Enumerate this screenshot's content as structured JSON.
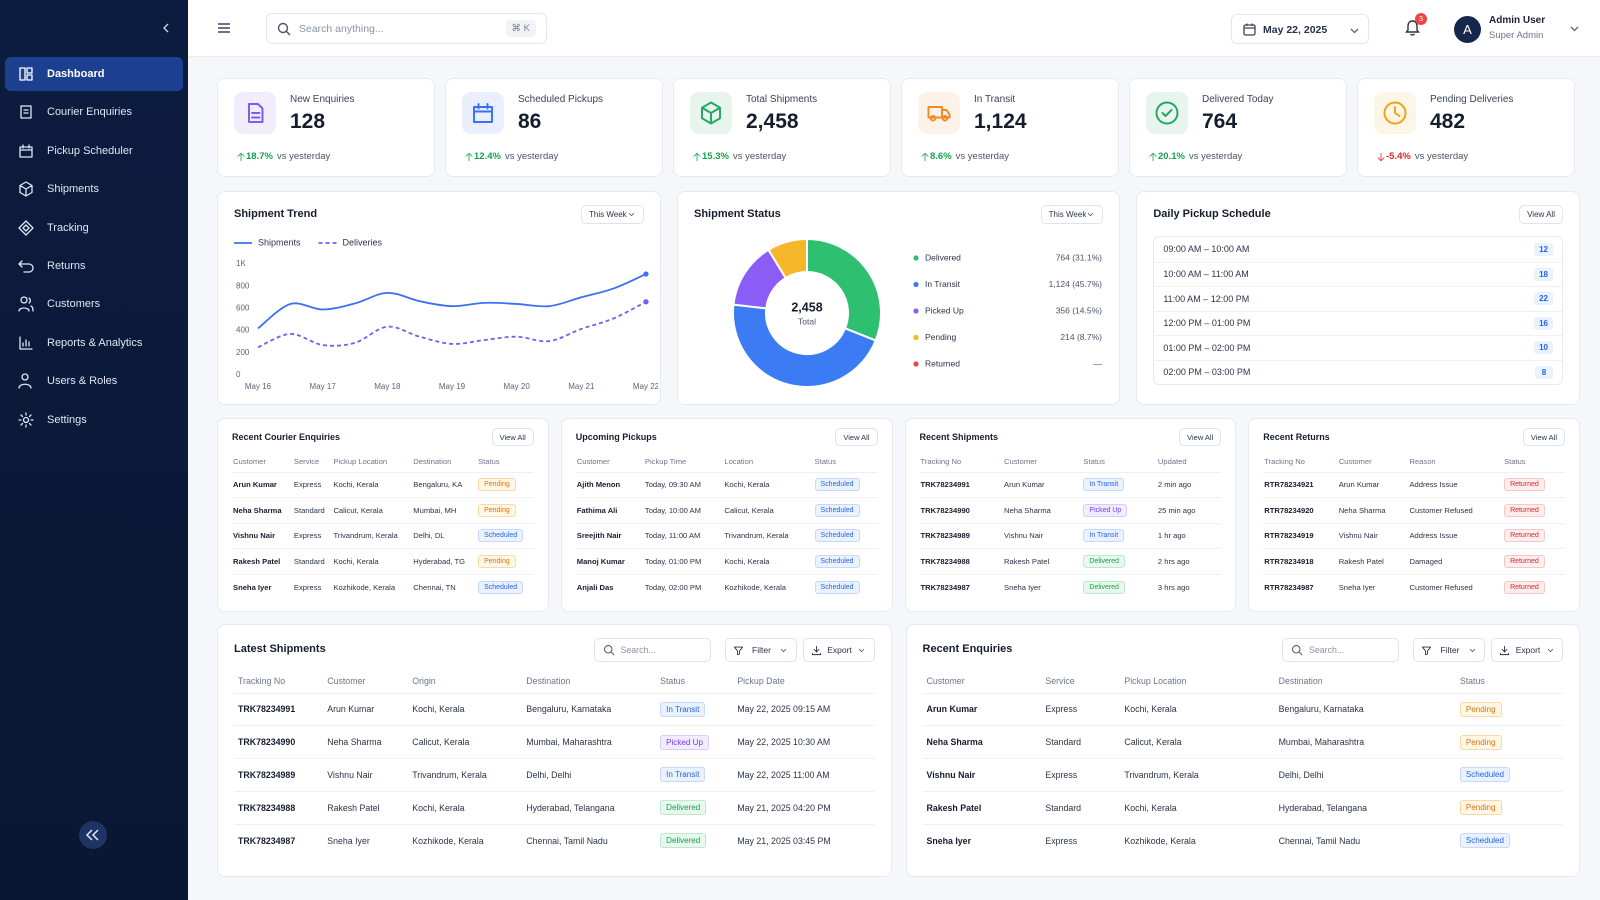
{
  "sidebar": {
    "nav": [
      {
        "label": "Dashboard",
        "active": true
      },
      {
        "label": "Courier Enquiries",
        "active": false
      },
      {
        "label": "Pickup Scheduler",
        "active": false
      },
      {
        "label": "Shipments",
        "active": false
      },
      {
        "label": "Tracking",
        "active": false
      },
      {
        "label": "Returns",
        "active": false
      },
      {
        "label": "Customers",
        "active": false
      },
      {
        "label": "Reports & Analytics",
        "active": false
      },
      {
        "label": "Users & Roles",
        "active": false
      },
      {
        "label": "Settings",
        "active": false
      }
    ]
  },
  "header": {
    "search_placeholder": "Search anything...",
    "shortcut": "⌘ K",
    "date": "May 22, 2025",
    "notifications": 3,
    "avatar": "A",
    "user_name": "Admin User",
    "user_role": "Super Admin"
  },
  "kpis": [
    {
      "label": "New Enquiries",
      "value": "128",
      "change": "18.7%",
      "direction": "up",
      "compare": "vs yesterday",
      "color": "#7c5cf0"
    },
    {
      "label": "Scheduled Pickups",
      "value": "86",
      "change": "12.4%",
      "direction": "up",
      "compare": "vs yesterday",
      "color": "#3b6ff5"
    },
    {
      "label": "Total Shipments",
      "value": "2,458",
      "change": "15.3%",
      "direction": "up",
      "compare": "vs yesterday",
      "color": "#22a861"
    },
    {
      "label": "In Transit",
      "value": "1,124",
      "change": "8.6%",
      "direction": "up",
      "compare": "vs yesterday",
      "color": "#f08a24"
    },
    {
      "label": "Delivered Today",
      "value": "764",
      "change": "20.1%",
      "direction": "up",
      "compare": "vs yesterday",
      "color": "#22a861"
    },
    {
      "label": "Pending Deliveries",
      "value": "482",
      "change": "-5.4%",
      "direction": "down",
      "compare": "vs yesterday",
      "color": "#f0a414"
    }
  ],
  "chart_data": [
    {
      "type": "line",
      "title": "Shipment Trend",
      "period": "This Week",
      "categories": [
        "May 16",
        null,
        "May 17",
        null,
        "May 18",
        null,
        "May 19",
        null,
        "May 20",
        null,
        "May 21",
        null,
        "May 22"
      ],
      "series": [
        {
          "name": "Shipments",
          "color": "#3b6ff5",
          "dash": false,
          "values": [
            420,
            640,
            590,
            645,
            740,
            665,
            620,
            650,
            640,
            620,
            700,
            780,
            910
          ]
        },
        {
          "name": "Deliveries",
          "color": "#7c5cf0",
          "dash": true,
          "values": [
            250,
            370,
            270,
            290,
            435,
            345,
            280,
            315,
            345,
            305,
            415,
            510,
            660
          ]
        }
      ],
      "ylim": [
        0,
        1000
      ],
      "yticks": [
        0,
        200,
        400,
        600,
        800,
        {
          "value": 1000,
          "label": "1K"
        }
      ],
      "grid": false
    },
    {
      "type": "donut",
      "title": "Shipment Status",
      "period": "This Week",
      "center_label": "2,458",
      "center_caption": "Total",
      "categories": [
        "Delivered",
        "In Transit",
        "Picked Up",
        "Pending",
        "Returned"
      ],
      "values": [
        764,
        1124,
        356,
        214,
        null
      ],
      "value_labels": [
        "764 (31.1%)",
        "1,124 (45.7%)",
        "356 (14.5%)",
        "214 (8.7%)",
        "—"
      ],
      "colors": [
        "#2fbf71",
        "#3b7cf5",
        "#8b5cf6",
        "#f5b62a",
        "#ef4444"
      ]
    }
  ],
  "pickup_schedule": {
    "title": "Daily Pickup Schedule",
    "action": "View All",
    "slots": [
      {
        "time": "09:00 AM – 10:00 AM",
        "count": 12
      },
      {
        "time": "10:00 AM – 11:00 AM",
        "count": 18
      },
      {
        "time": "11:00 AM – 12:00 PM",
        "count": 22
      },
      {
        "time": "12:00 PM – 01:00 PM",
        "count": 16
      },
      {
        "time": "01:00 PM – 02:00 PM",
        "count": 10
      },
      {
        "time": "02:00 PM – 03:00 PM",
        "count": 8
      }
    ]
  },
  "panels": [
    {
      "title": "Recent Courier Enquiries",
      "action": "View All",
      "columns": [
        "Customer",
        "Service",
        "Pickup Location",
        "Destination",
        "Status"
      ],
      "rows": [
        [
          "Arun Kumar",
          "Express",
          "Kochi, Kerala",
          "Bengaluru, KA",
          {
            "text": "Pending",
            "tone": "amber"
          }
        ],
        [
          "Neha Sharma",
          "Standard",
          "Calicut, Kerala",
          "Mumbai, MH",
          {
            "text": "Pending",
            "tone": "amber"
          }
        ],
        [
          "Vishnu Nair",
          "Express",
          "Trivandrum, Kerala",
          "Delhi, DL",
          {
            "text": "Scheduled",
            "tone": "blue"
          }
        ],
        [
          "Rakesh Patel",
          "Standard",
          "Kochi, Kerala",
          "Hyderabad, TG",
          {
            "text": "Pending",
            "tone": "amber"
          }
        ],
        [
          "Sneha Iyer",
          "Express",
          "Kozhikode, Kerala",
          "Chennai, TN",
          {
            "text": "Scheduled",
            "tone": "blue"
          }
        ]
      ]
    },
    {
      "title": "Upcoming Pickups",
      "action": "View All",
      "columns": [
        "Customer",
        "Pickup Time",
        "Location",
        "Status"
      ],
      "rows": [
        [
          "Ajith Menon",
          "Today, 09:30 AM",
          "Kochi, Kerala",
          {
            "text": "Scheduled",
            "tone": "blue"
          }
        ],
        [
          "Fathima Ali",
          "Today, 10:00 AM",
          "Calicut, Kerala",
          {
            "text": "Scheduled",
            "tone": "blue"
          }
        ],
        [
          "Sreejith Nair",
          "Today, 11:00 AM",
          "Trivandrum, Kerala",
          {
            "text": "Scheduled",
            "tone": "blue"
          }
        ],
        [
          "Manoj Kumar",
          "Today, 01:00 PM",
          "Kochi, Kerala",
          {
            "text": "Scheduled",
            "tone": "blue"
          }
        ],
        [
          "Anjali Das",
          "Today, 02:00 PM",
          "Kozhikode, Kerala",
          {
            "text": "Scheduled",
            "tone": "blue"
          }
        ]
      ]
    },
    {
      "title": "Recent Shipments",
      "action": "View All",
      "columns": [
        "Tracking No",
        "Customer",
        "Status",
        "Updated"
      ],
      "rows": [
        [
          "TRK78234991",
          "Arun Kumar",
          {
            "text": "In Transit",
            "tone": "blue"
          },
          "2 min ago"
        ],
        [
          "TRK78234990",
          "Neha Sharma",
          {
            "text": "Picked Up",
            "tone": "purple"
          },
          "25 min ago"
        ],
        [
          "TRK78234989",
          "Vishnu Nair",
          {
            "text": "In Transit",
            "tone": "blue"
          },
          "1 hr ago"
        ],
        [
          "TRK78234988",
          "Rakesh Patel",
          {
            "text": "Delivered",
            "tone": "green"
          },
          "2 hrs ago"
        ],
        [
          "TRK78234987",
          "Sneha Iyer",
          {
            "text": "Delivered",
            "tone": "green"
          },
          "3 hrs ago"
        ]
      ]
    },
    {
      "title": "Recent Returns",
      "action": "View All",
      "columns": [
        "Tracking No",
        "Customer",
        "Reason",
        "Status"
      ],
      "rows": [
        [
          "RTR78234921",
          "Arun Kumar",
          "Address Issue",
          {
            "text": "Returned",
            "tone": "red"
          }
        ],
        [
          "RTR78234920",
          "Neha Sharma",
          "Customer Refused",
          {
            "text": "Returned",
            "tone": "red"
          }
        ],
        [
          "RTR78234919",
          "Vishnu Nair",
          "Address Issue",
          {
            "text": "Returned",
            "tone": "red"
          }
        ],
        [
          "RTR78234918",
          "Rakesh Patel",
          "Damaged",
          {
            "text": "Returned",
            "tone": "red"
          }
        ],
        [
          "RTR78234987",
          "Sneha Iyer",
          "Customer Refused",
          {
            "text": "Returned",
            "tone": "red"
          }
        ]
      ]
    }
  ],
  "tables": [
    {
      "title": "Latest Shipments",
      "search_placeholder": "Search...",
      "filter": "Filter",
      "export": "Export",
      "columns": [
        "Tracking No",
        "Customer",
        "Origin",
        "Destination",
        "Status",
        "Pickup Date"
      ],
      "rows": [
        [
          "TRK78234991",
          "Arun Kumar",
          "Kochi, Kerala",
          "Bengaluru, Karnataka",
          {
            "text": "In Transit",
            "tone": "blue"
          },
          "May 22, 2025 09:15 AM"
        ],
        [
          "TRK78234990",
          "Neha Sharma",
          "Calicut, Kerala",
          "Mumbai, Maharashtra",
          {
            "text": "Picked Up",
            "tone": "purple"
          },
          "May 22, 2025 10:30 AM"
        ],
        [
          "TRK78234989",
          "Vishnu Nair",
          "Trivandrum, Kerala",
          "Delhi, Delhi",
          {
            "text": "In Transit",
            "tone": "blue"
          },
          "May 22, 2025 11:00 AM"
        ],
        [
          "TRK78234988",
          "Rakesh Patel",
          "Kochi, Kerala",
          "Hyderabad, Telangana",
          {
            "text": "Delivered",
            "tone": "green"
          },
          "May 21, 2025 04:20 PM"
        ],
        [
          "TRK78234987",
          "Sneha Iyer",
          "Kozhikode, Kerala",
          "Chennai, Tamil Nadu",
          {
            "text": "Delivered",
            "tone": "green"
          },
          "May 21, 2025 03:45 PM"
        ]
      ]
    },
    {
      "title": "Recent Enquiries",
      "search_placeholder": "Search...",
      "filter": "Filter",
      "export": "Export",
      "columns": [
        "Customer",
        "Service",
        "Pickup Location",
        "Destination",
        "Status"
      ],
      "rows": [
        [
          "Arun Kumar",
          "Express",
          "Kochi, Kerala",
          "Bengaluru, Karnataka",
          {
            "text": "Pending",
            "tone": "amber"
          }
        ],
        [
          "Neha Sharma",
          "Standard",
          "Calicut, Kerala",
          "Mumbai, Maharashtra",
          {
            "text": "Pending",
            "tone": "amber"
          }
        ],
        [
          "Vishnu Nair",
          "Express",
          "Trivandrum, Kerala",
          "Delhi, Delhi",
          {
            "text": "Scheduled",
            "tone": "blue"
          }
        ],
        [
          "Rakesh Patel",
          "Standard",
          "Kochi, Kerala",
          "Hyderabad, Telangana",
          {
            "text": "Pending",
            "tone": "amber"
          }
        ],
        [
          "Sneha Iyer",
          "Express",
          "Kozhikode, Kerala",
          "Chennai, Tamil Nadu",
          {
            "text": "Scheduled",
            "tone": "blue"
          }
        ]
      ]
    }
  ]
}
